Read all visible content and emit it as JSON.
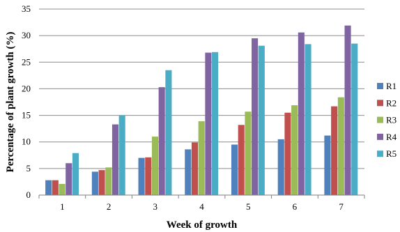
{
  "chart_data": {
    "type": "bar",
    "xlabel": "Week of growth",
    "ylabel": "Percentage of plant growth (%)",
    "categories": [
      "1",
      "2",
      "3",
      "4",
      "5",
      "6",
      "7"
    ],
    "ylim": [
      0,
      35
    ],
    "yticks": [
      "0",
      "5",
      "10",
      "15",
      "20",
      "25",
      "30",
      "35"
    ],
    "grid": "horizontal",
    "legend_position": "right",
    "series": [
      {
        "name": "R1",
        "color": "#4f81bd",
        "values": [
          2.8,
          4.4,
          7.0,
          8.6,
          9.5,
          10.5,
          11.2
        ]
      },
      {
        "name": "R2",
        "color": "#c0504d",
        "values": [
          2.8,
          4.7,
          7.1,
          9.9,
          13.2,
          15.5,
          16.7
        ]
      },
      {
        "name": "R3",
        "color": "#9bbb59",
        "values": [
          2.1,
          5.2,
          11.0,
          13.9,
          15.7,
          16.9,
          18.4
        ]
      },
      {
        "name": "R4",
        "color": "#8064a2",
        "values": [
          6.0,
          13.3,
          20.3,
          26.8,
          29.5,
          30.6,
          31.9
        ]
      },
      {
        "name": "R5",
        "color": "#4bacc6",
        "values": [
          7.9,
          15.0,
          23.5,
          26.9,
          28.1,
          28.4,
          28.5
        ]
      }
    ]
  }
}
